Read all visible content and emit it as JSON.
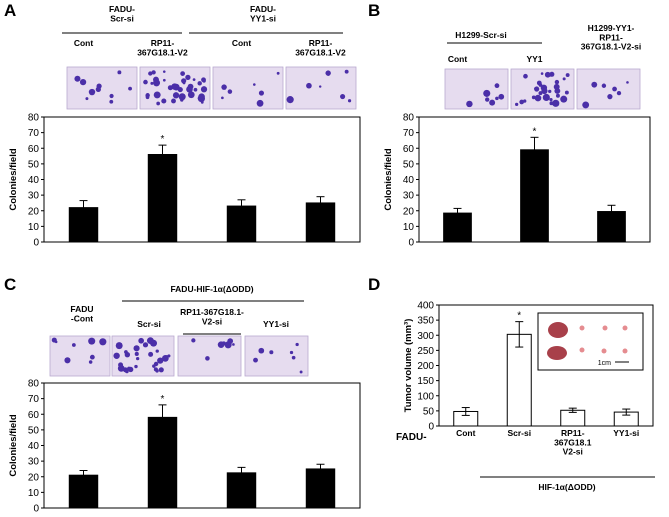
{
  "colors": {
    "bar": "#000000",
    "photo_bg": "#e6dcef",
    "colony": "#4b2fa8",
    "tumor": "#a8404a",
    "tumor_small": "#e58c90"
  },
  "chart_data": [
    {
      "panel": "A",
      "type": "bar",
      "group_labels": [
        "FADU-\nScr-si",
        "FADU-\nYY1-si"
      ],
      "condition_labels": [
        "Cont",
        "RP11-\n367G18.1-V2",
        "Cont",
        "RP11-\n367G18.1-V2"
      ],
      "categories": [
        "Scr-si Cont",
        "Scr-si RP11-367G18.1-V2",
        "YY1-si Cont",
        "YY1-si RP11-367G18.1-V2"
      ],
      "values": [
        22,
        56,
        23,
        25
      ],
      "errors": [
        4.5,
        6,
        4,
        4
      ],
      "ylabel": "Colonies/field",
      "ylim": [
        0,
        80
      ],
      "yticks": [
        0,
        10,
        20,
        30,
        40,
        50,
        60,
        70,
        80
      ],
      "significance": [
        "",
        "*",
        "",
        ""
      ],
      "bar_fill": "black"
    },
    {
      "panel": "B",
      "type": "bar",
      "group_labels": [
        "H1299-Scr-si",
        "H1299-YY1-\nRP11-\n367G18.1-V2-si"
      ],
      "condition_labels": [
        "Cont",
        "YY1",
        ""
      ],
      "categories": [
        "Scr-si Cont",
        "Scr-si YY1",
        "YY1-RP11-367G18.1-V2-si"
      ],
      "values": [
        18.5,
        59,
        19.5
      ],
      "errors": [
        3,
        8,
        4
      ],
      "ylabel": "Colonies/field",
      "ylim": [
        0,
        80
      ],
      "yticks": [
        0,
        10,
        20,
        30,
        40,
        50,
        60,
        70,
        80
      ],
      "significance": [
        "",
        "*",
        ""
      ],
      "bar_fill": "black"
    },
    {
      "panel": "C",
      "type": "bar",
      "group_labels": [
        "FADU-HIF-1α(ΔODD)",
        "RP11-367G18.1-\nV2-si"
      ],
      "condition_labels": [
        "FADU\n-Cont",
        "Scr-si",
        "",
        "YY1-si"
      ],
      "categories": [
        "FADU-Cont",
        "Scr-si",
        "RP11-367G18.1-V2-si",
        "YY1-si"
      ],
      "values": [
        21,
        58,
        22.5,
        25
      ],
      "errors": [
        3,
        8,
        3.5,
        3
      ],
      "ylabel": "Colonies/field",
      "ylim": [
        0,
        80
      ],
      "yticks": [
        0,
        10,
        20,
        30,
        40,
        50,
        60,
        70,
        80
      ],
      "significance": [
        "",
        "*",
        "",
        ""
      ],
      "bar_fill": "black"
    },
    {
      "panel": "D",
      "type": "bar",
      "categories": [
        "Cont",
        "Scr-si",
        "RP11-\n367G18.1\nV2-si",
        "YY1-si"
      ],
      "values": [
        48,
        303,
        52,
        46
      ],
      "errors": [
        13,
        42,
        7,
        10
      ],
      "ylabel": "Tumor volume (mm³)",
      "ylim": [
        0,
        400
      ],
      "yticks": [
        0,
        50,
        100,
        150,
        200,
        250,
        300,
        350,
        400
      ],
      "significance": [
        "",
        "*",
        "",
        ""
      ],
      "row_label": "FADU-",
      "group_label": "HIF-1α(ΔODD)",
      "inset_scale": "1cm",
      "bar_fill": "white"
    }
  ]
}
